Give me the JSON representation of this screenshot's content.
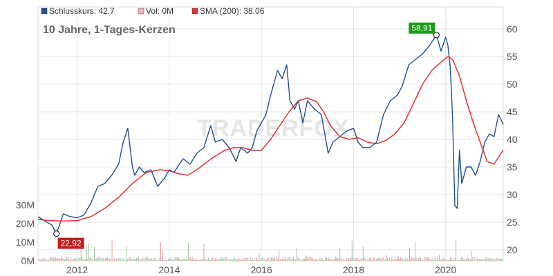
{
  "legend": {
    "close_label": "Schlusskurs: 42.7",
    "vol_label": "Vol: 0M",
    "sma_label": "SMA (200): 38.06"
  },
  "colors": {
    "close": "#1f4e8c",
    "sma": "#e03030",
    "vol_up": "#9cc79c",
    "vol_down": "#e8a0a0",
    "max_badge": "#1a9a1a",
    "min_badge": "#c81d1d",
    "grid": "#e5e5e5"
  },
  "chart_data": {
    "type": "line",
    "title": "10 Jahre, 1-Tages-Kerzen",
    "watermark": "TRADERFOX",
    "x_range": [
      2011.15,
      2021.25
    ],
    "ylim": [
      18,
      64
    ],
    "y_ticks": [
      20,
      25,
      30,
      35,
      40,
      45,
      50,
      55,
      60
    ],
    "x_ticks": [
      {
        "value": 2012,
        "label": "2012"
      },
      {
        "value": 2014,
        "label": "2014"
      },
      {
        "value": 2016,
        "label": "2016"
      },
      {
        "value": 2018,
        "label": "2018"
      },
      {
        "value": 2020,
        "label": "2020"
      }
    ],
    "volume_ylim": [
      0,
      40
    ],
    "volume_ticks": [
      {
        "value": 0,
        "label": "0M"
      },
      {
        "value": 10,
        "label": "10M"
      },
      {
        "value": 20,
        "label": "20M"
      },
      {
        "value": 30,
        "label": "30M"
      }
    ],
    "max_marker": {
      "x": 2019.8,
      "y": 58.91,
      "label": "58,91"
    },
    "min_marker": {
      "x": 2011.55,
      "y": 22.92,
      "label": "22,92"
    },
    "series": [
      {
        "name": "Schlusskurs",
        "x": [
          2011.15,
          2011.3,
          2011.45,
          2011.55,
          2011.7,
          2011.85,
          2012.0,
          2012.15,
          2012.3,
          2012.45,
          2012.6,
          2012.75,
          2012.9,
          2013.0,
          2013.1,
          2013.2,
          2013.25,
          2013.35,
          2013.45,
          2013.6,
          2013.75,
          2013.9,
          2014.0,
          2014.1,
          2014.3,
          2014.45,
          2014.6,
          2014.75,
          2014.9,
          2015.0,
          2015.15,
          2015.3,
          2015.45,
          2015.55,
          2015.7,
          2015.8,
          2015.9,
          2016.0,
          2016.1,
          2016.2,
          2016.35,
          2016.45,
          2016.55,
          2016.62,
          2016.72,
          2016.8,
          2016.9,
          2017.0,
          2017.15,
          2017.3,
          2017.45,
          2017.55,
          2017.7,
          2017.85,
          2018.0,
          2018.1,
          2018.2,
          2018.35,
          2018.5,
          2018.65,
          2018.8,
          2018.95,
          2019.05,
          2019.2,
          2019.35,
          2019.5,
          2019.65,
          2019.8,
          2019.9,
          2020.0,
          2020.05,
          2020.1,
          2020.15,
          2020.2,
          2020.25,
          2020.3,
          2020.35,
          2020.45,
          2020.55,
          2020.65,
          2020.75,
          2020.85,
          2020.95,
          2021.05,
          2021.15,
          2021.25
        ],
        "y": [
          26.0,
          25.2,
          24.5,
          22.92,
          26.5,
          26.0,
          25.8,
          26.3,
          28.5,
          31.5,
          32.0,
          33.5,
          35.5,
          39.5,
          42.0,
          35.0,
          33.5,
          35.0,
          34.0,
          34.5,
          31.5,
          33.0,
          34.5,
          34.0,
          36.5,
          35.5,
          37.5,
          38.5,
          42.5,
          39.5,
          40.0,
          38.5,
          36.0,
          38.5,
          37.5,
          38.5,
          41.5,
          43.0,
          44.5,
          48.0,
          52.5,
          51.0,
          53.5,
          47.0,
          45.5,
          47.0,
          43.0,
          47.0,
          45.5,
          44.5,
          37.5,
          39.5,
          40.5,
          41.5,
          42.0,
          39.5,
          38.5,
          38.5,
          39.5,
          44.5,
          47.0,
          48.0,
          49.5,
          53.5,
          54.5,
          55.5,
          57.0,
          58.91,
          56.0,
          58.5,
          57.0,
          53.0,
          44.0,
          28.0,
          27.5,
          38.0,
          32.0,
          35.0,
          35.0,
          33.5,
          36.0,
          39.5,
          41.0,
          40.5,
          44.5,
          42.7
        ]
      },
      {
        "name": "SMA (200)",
        "x": [
          2011.15,
          2011.4,
          2011.7,
          2012.0,
          2012.3,
          2012.6,
          2012.9,
          2013.2,
          2013.5,
          2013.8,
          2014.0,
          2014.2,
          2014.4,
          2014.6,
          2014.8,
          2015.0,
          2015.2,
          2015.4,
          2015.6,
          2015.8,
          2016.0,
          2016.2,
          2016.4,
          2016.6,
          2016.8,
          2017.0,
          2017.2,
          2017.35,
          2017.5,
          2017.7,
          2017.9,
          2018.1,
          2018.3,
          2018.5,
          2018.7,
          2018.9,
          2019.1,
          2019.3,
          2019.5,
          2019.7,
          2019.9,
          2020.05,
          2020.15,
          2020.3,
          2020.45,
          2020.6,
          2020.75,
          2020.9,
          2021.05,
          2021.25
        ],
        "y": [
          25.5,
          25.3,
          25.2,
          25.3,
          26.0,
          27.5,
          29.5,
          32.0,
          34.0,
          34.5,
          34.3,
          33.8,
          33.5,
          34.5,
          35.8,
          37.0,
          38.0,
          38.5,
          38.5,
          38.0,
          38.0,
          40.0,
          42.5,
          45.0,
          47.0,
          47.5,
          46.8,
          45.0,
          42.5,
          40.5,
          40.0,
          40.3,
          39.5,
          39.2,
          39.8,
          41.0,
          43.0,
          46.5,
          50.0,
          52.5,
          54.0,
          55.0,
          54.5,
          51.5,
          47.0,
          43.0,
          39.5,
          36.0,
          35.5,
          38.06
        ]
      }
    ]
  }
}
